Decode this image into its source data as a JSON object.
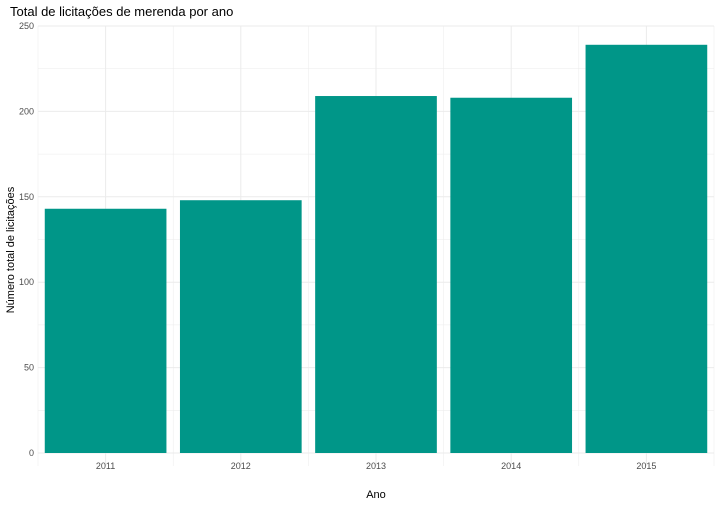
{
  "chart_data": {
    "type": "bar",
    "title": "Total de licitações de merenda por ano",
    "xlabel": "Ano",
    "ylabel": "Número total de licitações",
    "categories": [
      "2011",
      "2012",
      "2013",
      "2014",
      "2015"
    ],
    "values": [
      143,
      148,
      209,
      208,
      239
    ],
    "ylim": [
      0,
      250
    ],
    "yticks": [
      0,
      50,
      100,
      150,
      200,
      250
    ],
    "grid": true,
    "legend": "none",
    "bar_color": "#009688",
    "grid_color": "#ebebeb",
    "text_color": "#4d4d4d"
  }
}
